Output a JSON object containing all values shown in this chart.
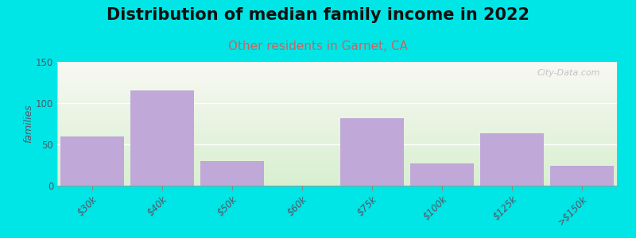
{
  "title": "Distribution of median family income in 2022",
  "subtitle": "Other residents in Garnet, CA",
  "categories": [
    "$30k",
    "$40k",
    "$50k",
    "$60k",
    "$75k",
    "$100k",
    "$125k",
    ">$150k"
  ],
  "values": [
    60,
    115,
    30,
    0,
    82,
    27,
    63,
    24
  ],
  "bar_color": "#c0a8d8",
  "bar_color_empty": "#ddeec8",
  "bg_color_topleft": "#d8efd0",
  "bg_color_topright": "#e8f4e0",
  "bg_color_bottom": "#f8f8f2",
  "outer_bg": "#00e5e5",
  "ylabel": "families",
  "ylim": [
    0,
    150
  ],
  "yticks": [
    0,
    50,
    100,
    150
  ],
  "title_fontsize": 15,
  "subtitle_fontsize": 11,
  "subtitle_color": "#c06868",
  "watermark": "City-Data.com",
  "watermark_color": "#b8b8c0"
}
